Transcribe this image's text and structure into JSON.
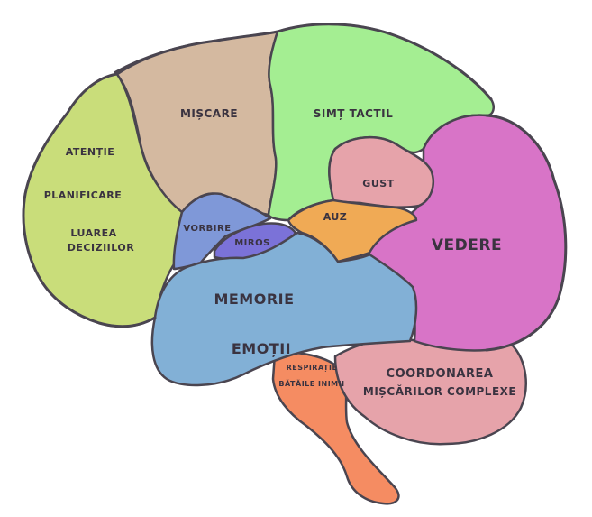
{
  "regions": {
    "frontal": {
      "lines": [
        "ATENȚIE",
        "PLANIFICARE",
        "LUAREA",
        "DECIZIILOR"
      ],
      "color": "#c9dd7a"
    },
    "motor": {
      "lines": [
        "MIȘCARE"
      ],
      "color": "#d4b9a0"
    },
    "parietal": {
      "lines": [
        "SIMȚ TACTIL"
      ],
      "color": "#a4ee92"
    },
    "taste": {
      "lines": [
        "GUST"
      ],
      "color": "#e6a3aa"
    },
    "hearing": {
      "lines": [
        "AUZ"
      ],
      "color": "#f0aa55"
    },
    "vision": {
      "lines": [
        "VEDERE"
      ],
      "color": "#d874c7"
    },
    "speech": {
      "lines": [
        "VORBIRE"
      ],
      "color": "#7f98d8"
    },
    "smell": {
      "lines": [
        "MIROS"
      ],
      "color": "#7b72d8"
    },
    "temporal": {
      "lines": [
        "MEMORIE",
        "EMOȚII"
      ],
      "color": "#82b0d6"
    },
    "brainstem": {
      "lines": [
        "RESPIRAȚIE",
        "BĂTĂILE INIMII"
      ],
      "color": "#f58c62"
    },
    "cerebellum": {
      "lines": [
        "COORDONAREA",
        "MIȘCĂRILOR COMPLEXE"
      ],
      "color": "#e6a3aa"
    }
  }
}
